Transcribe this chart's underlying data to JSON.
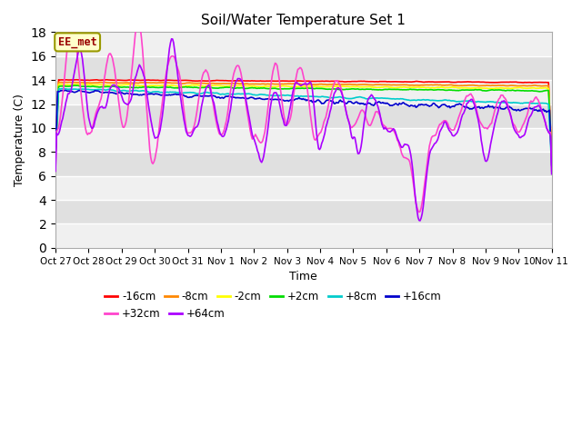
{
  "title": "Soil/Water Temperature Set 1",
  "xlabel": "Time",
  "ylabel": "Temperature (C)",
  "ylim": [
    0,
    18
  ],
  "yticks": [
    0,
    2,
    4,
    6,
    8,
    10,
    12,
    14,
    16,
    18
  ],
  "background_color": "#ffffff",
  "plot_bg_color": "#e0e0e0",
  "stripe_color": "#f0f0f0",
  "annotation_text": "EE_met",
  "annotation_bg": "#ffffcc",
  "annotation_border": "#999900",
  "annotation_text_color": "#990000",
  "legend_order": [
    "-16cm",
    "-8cm",
    "-2cm",
    "+2cm",
    "+8cm",
    "+16cm",
    "+32cm",
    "+64cm"
  ],
  "series_colors": {
    "-16cm": "#ff0000",
    "-8cm": "#ff8800",
    "-2cm": "#ffff00",
    "+2cm": "#00dd00",
    "+8cm": "#00cccc",
    "+16cm": "#0000cc",
    "+32cm": "#ff44cc",
    "+64cm": "#aa00ff"
  },
  "linewidth": 1.2,
  "n_points": 480,
  "x_start": 0,
  "x_end": 15,
  "xtick_positions": [
    0,
    1,
    2,
    3,
    4,
    5,
    6,
    7,
    8,
    9,
    10,
    11,
    12,
    13,
    14,
    15
  ],
  "xtick_labels": [
    "Oct 27",
    "Oct 28",
    "Oct 29",
    "Oct 30",
    "Oct 31",
    "Nov 1",
    "Nov 2",
    "Nov 3",
    "Nov 4",
    "Nov 5",
    "Nov 6",
    "Nov 7",
    "Nov 8",
    "Nov 9",
    "Nov 10",
    "Nov 11"
  ]
}
